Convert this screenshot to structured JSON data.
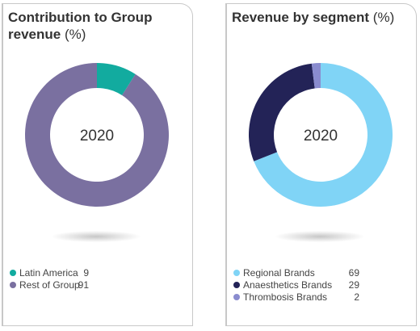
{
  "chart_data": [
    {
      "type": "pie",
      "title": "Contribution to Group revenue",
      "title_unit": "(%)",
      "center_label": "2020",
      "categories": [
        "Latin America",
        "Rest of Group"
      ],
      "values": [
        9,
        91
      ],
      "colors": [
        "#12ab9f",
        "#7a70a0"
      ],
      "legend_position": "bottom-left"
    },
    {
      "type": "pie",
      "title": "Revenue by segment",
      "title_unit": "(%)",
      "center_label": "2020",
      "categories": [
        "Regional Brands",
        "Anaesthetics Brands",
        "Thrombosis Brands"
      ],
      "values": [
        69,
        29,
        2
      ],
      "colors": [
        "#80d4f6",
        "#232357",
        "#8a8ccf"
      ],
      "legend_position": "bottom-left"
    }
  ]
}
